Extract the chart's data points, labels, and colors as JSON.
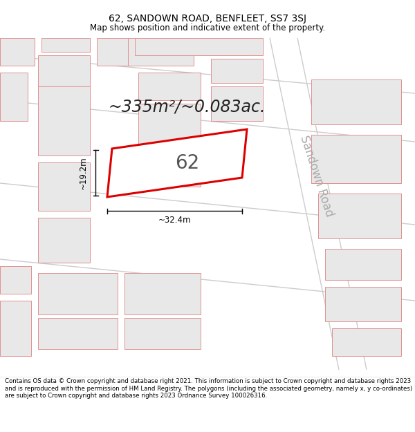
{
  "title": "62, SANDOWN ROAD, BENFLEET, SS7 3SJ",
  "subtitle": "Map shows position and indicative extent of the property.",
  "area_text": "~335m²/~0.083ac.",
  "width_label": "~32.4m",
  "height_label": "~19.2m",
  "property_number": "62",
  "road_label": "Sandown Road",
  "footer": "Contains OS data © Crown copyright and database right 2021. This information is subject to Crown copyright and database rights 2023 and is reproduced with the permission of HM Land Registry. The polygons (including the associated geometry, namely x, y co-ordinates) are subject to Crown copyright and database rights 2023 Ordnance Survey 100026316.",
  "bg_color": "#ffffff",
  "map_bg": "#ffffff",
  "plot_color": "#dd0000",
  "plot_fill": "#ffffff",
  "bldg_fill": "#e8e8e8",
  "bldg_edge": "#e09090",
  "road_line": "#cccccc",
  "road_text": "#aaaaaa",
  "title_fontsize": 10,
  "subtitle_fontsize": 8.5,
  "area_fontsize": 17,
  "label_fontsize": 8.5,
  "number_fontsize": 20,
  "road_fontsize": 12,
  "footer_fontsize": 6.2
}
